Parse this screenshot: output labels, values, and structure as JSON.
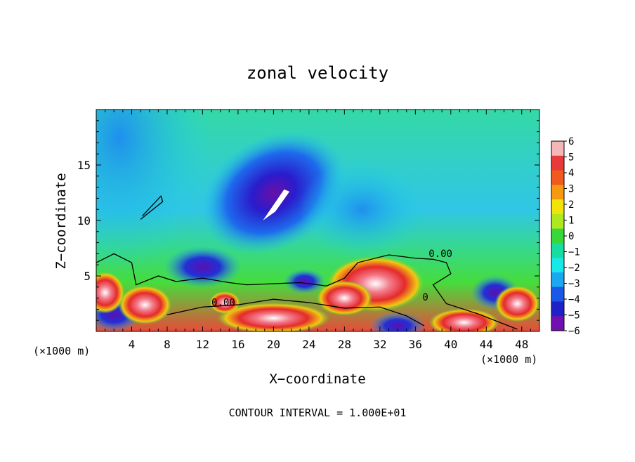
{
  "chart_data": {
    "type": "heatmap",
    "title": "zonal velocity",
    "xlabel": "X−coordinate",
    "ylabel": "Z−coordinate",
    "x_unit_left": "(×1000 m)",
    "x_unit_right": "(×1000 m)",
    "xlim": [
      0,
      50
    ],
    "ylim": [
      0,
      20
    ],
    "x_ticks": [
      4,
      8,
      12,
      16,
      20,
      24,
      28,
      32,
      36,
      40,
      44,
      48
    ],
    "y_ticks": [
      5,
      10,
      15
    ],
    "colorbar": {
      "range": [
        -6,
        6
      ],
      "tick_labels": [
        "6",
        "5",
        "4",
        "3",
        "2",
        "1",
        "0",
        "−1",
        "−2",
        "−3",
        "−4",
        "−5",
        "−6"
      ],
      "colors": [
        "#f4b6b6",
        "#e83a3a",
        "#f05a1e",
        "#f59a10",
        "#f2e40a",
        "#aee81e",
        "#38d838",
        "#18dca0",
        "#18e8e8",
        "#1aa8f0",
        "#1a58e8",
        "#2020c8",
        "#7010b0"
      ]
    },
    "contour_labels": [
      "0.00",
      "0.00",
      "0"
    ],
    "footer": "CONTOUR INTERVAL =  1.000E+01"
  }
}
